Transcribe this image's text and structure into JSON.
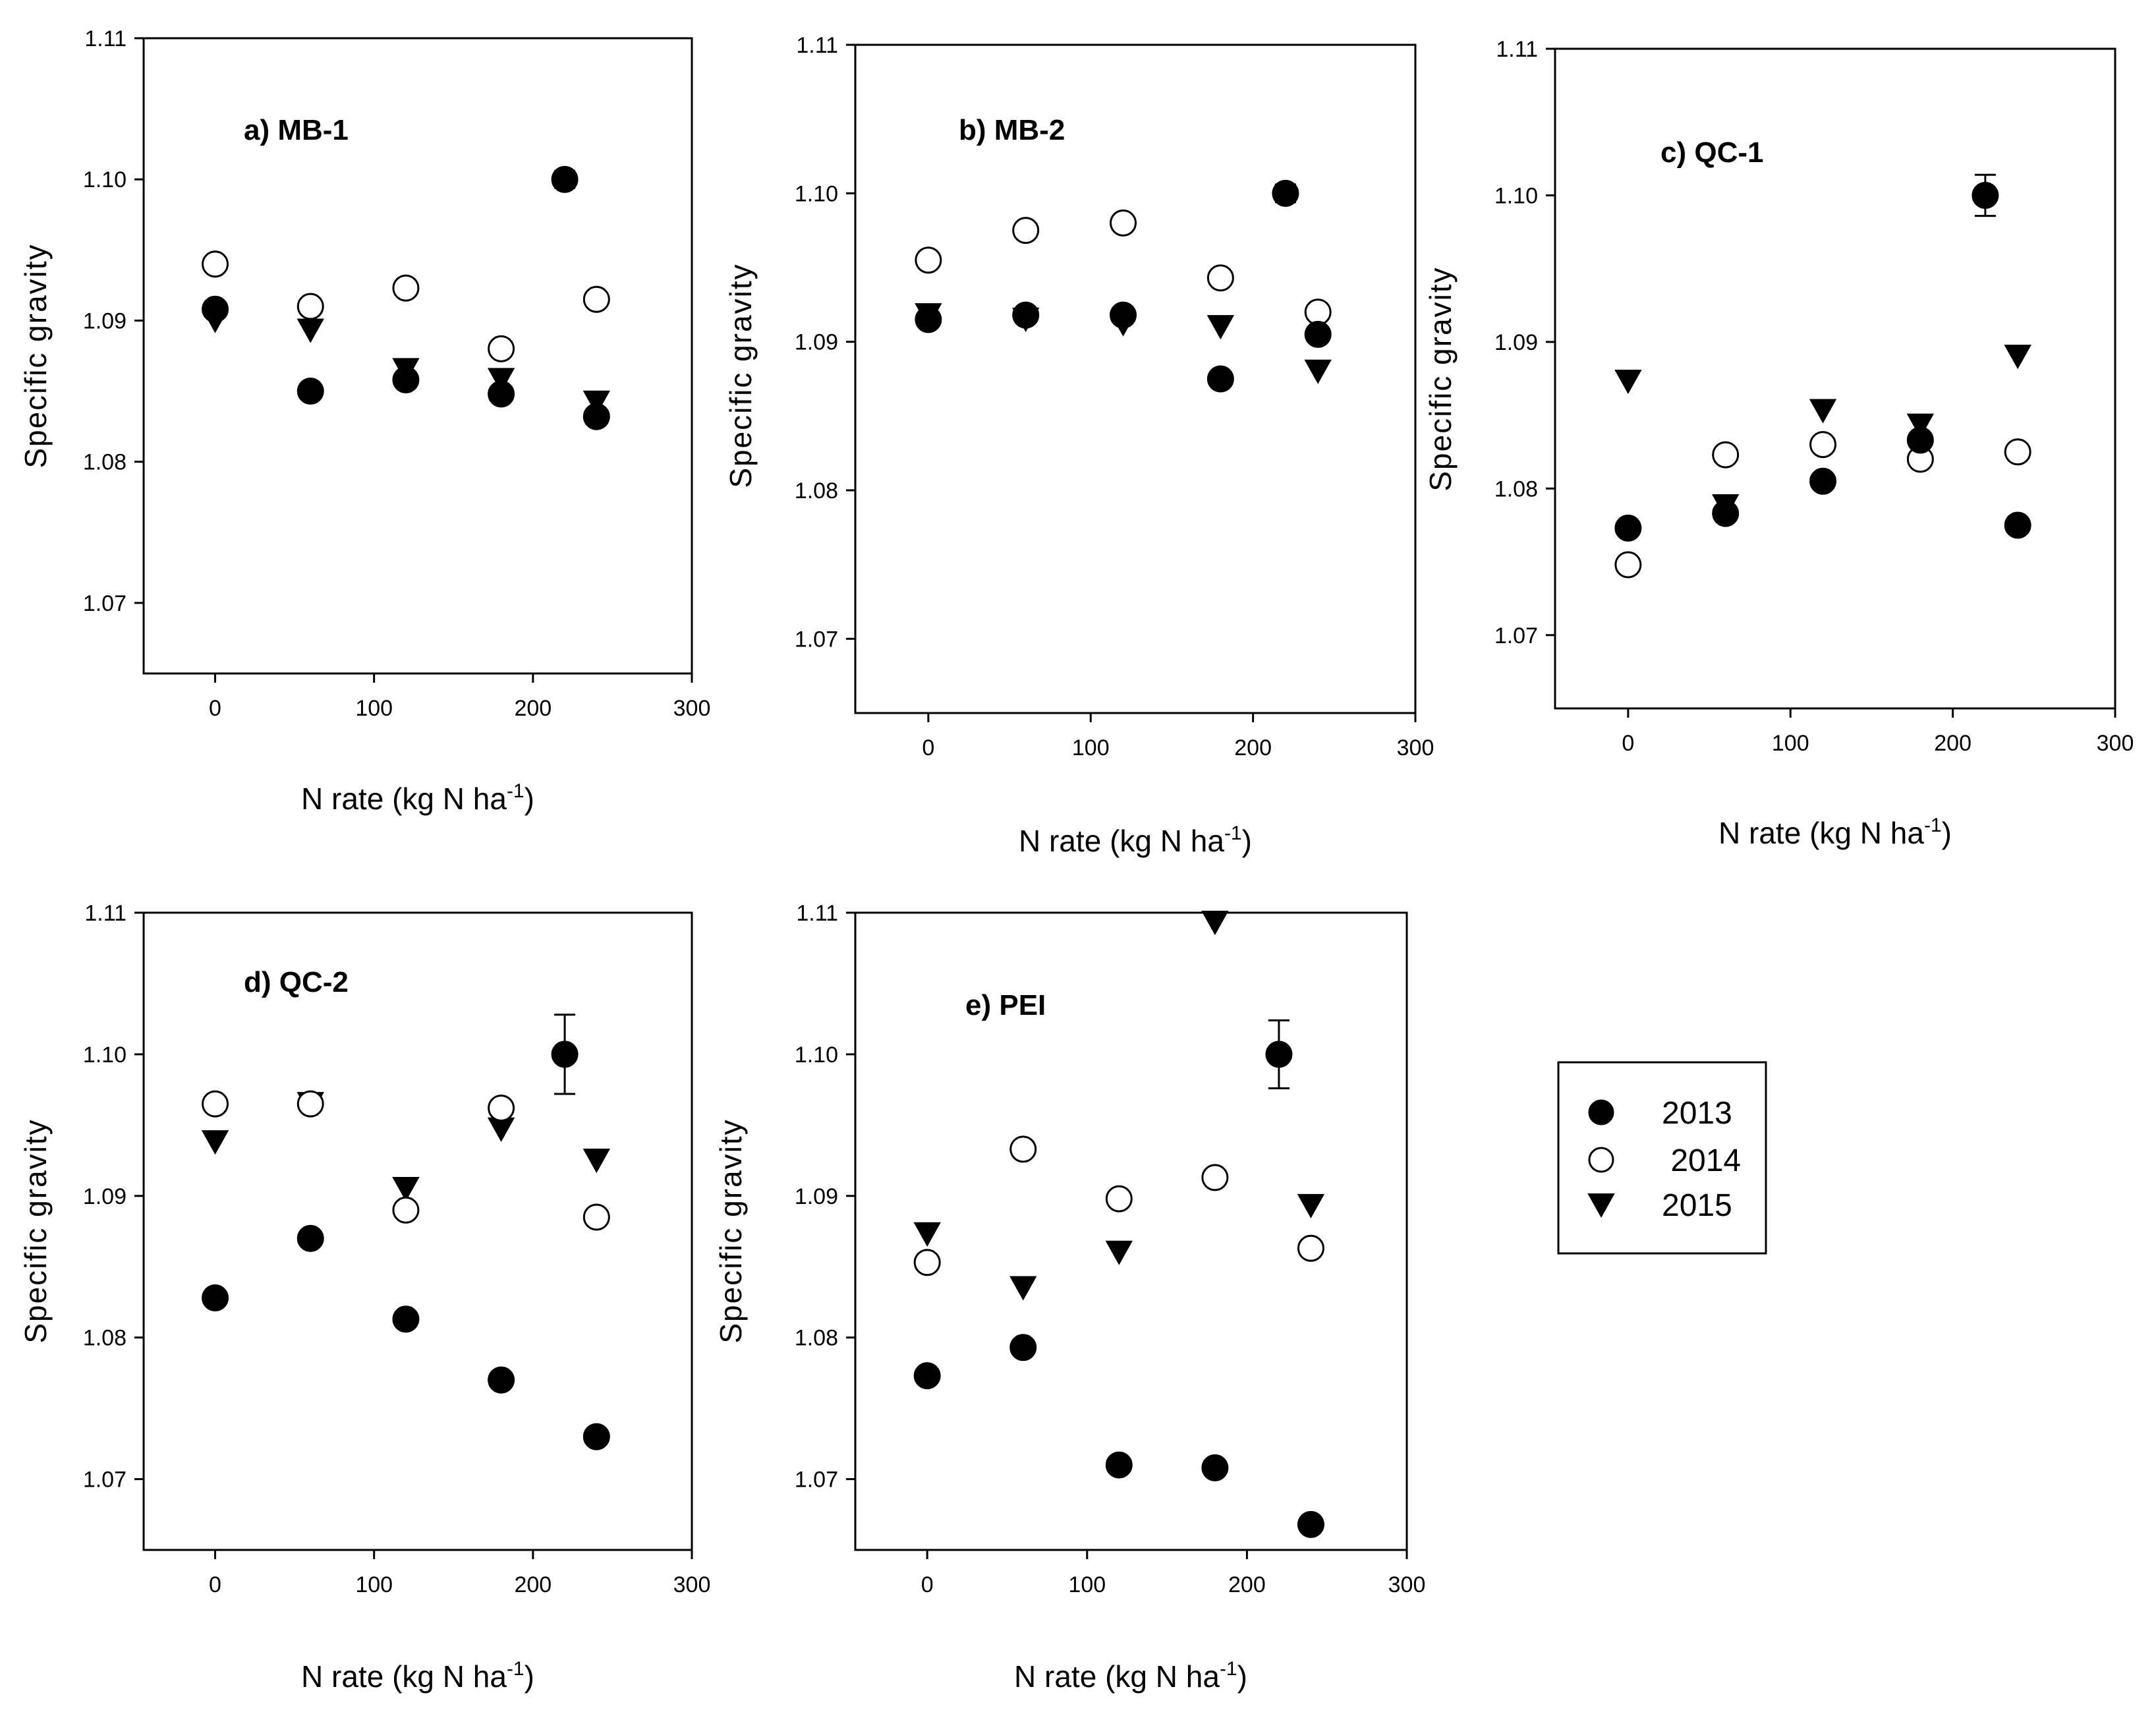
{
  "chart_data": [
    {
      "type": "scatter",
      "title": "a) MB-1",
      "xlabel": "N rate (kg N ha",
      "xlabel_sup": "-1",
      "xlabel_end": ")",
      "ylabel": "Specific gravity",
      "xlim": [
        -45,
        300
      ],
      "ylim": [
        1.065,
        1.11
      ],
      "xticks": [
        0,
        100,
        200,
        300
      ],
      "yticks": [
        1.07,
        1.08,
        1.09,
        1.1,
        1.11
      ],
      "ytick_labels": [
        "1.07",
        "1.08",
        "1.09",
        "1.10",
        "1.11"
      ],
      "series": [
        {
          "name": "2013",
          "marker": "filled-circle",
          "x": [
            0,
            60,
            120,
            180,
            240
          ],
          "y": [
            1.0908,
            1.085,
            1.0858,
            1.0848,
            1.0832
          ]
        },
        {
          "name": "2014",
          "marker": "open-circle",
          "x": [
            0,
            60,
            120,
            180,
            240
          ],
          "y": [
            1.094,
            1.091,
            1.0923,
            1.088,
            1.0915
          ]
        },
        {
          "name": "2015",
          "marker": "filled-triangle",
          "x": [
            0,
            60,
            120,
            180,
            240
          ],
          "y": [
            1.09,
            1.0893,
            1.0865,
            1.0858,
            1.0842
          ]
        }
      ],
      "error_point": {
        "x": 220,
        "y": 1.1,
        "err": 0.0006
      }
    },
    {
      "type": "scatter",
      "title": "b) MB-2",
      "xlabel": "N rate (kg N ha",
      "xlabel_sup": "-1",
      "xlabel_end": ")",
      "ylabel": "Specific gravity",
      "xlim": [
        -45,
        300
      ],
      "ylim": [
        1.065,
        1.11
      ],
      "xticks": [
        0,
        100,
        200,
        300
      ],
      "yticks": [
        1.07,
        1.08,
        1.09,
        1.1,
        1.11
      ],
      "ytick_labels": [
        "1.07",
        "1.08",
        "1.09",
        "1.10",
        "1.11"
      ],
      "series": [
        {
          "name": "2013",
          "marker": "filled-circle",
          "x": [
            0,
            60,
            120,
            180,
            240
          ],
          "y": [
            1.0915,
            1.0918,
            1.0918,
            1.0875,
            1.0905
          ]
        },
        {
          "name": "2014",
          "marker": "open-circle",
          "x": [
            0,
            60,
            120,
            180,
            240
          ],
          "y": [
            1.0955,
            1.0975,
            1.098,
            1.0943,
            1.092
          ]
        },
        {
          "name": "2015",
          "marker": "filled-triangle",
          "x": [
            0,
            60,
            120,
            180,
            240
          ],
          "y": [
            1.0918,
            1.0915,
            1.0912,
            1.091,
            1.088
          ]
        }
      ],
      "error_point": {
        "x": 220,
        "y": 1.1,
        "err": 0.0006
      }
    },
    {
      "type": "scatter",
      "title": "c) QC-1",
      "xlabel": "N rate (kg N ha",
      "xlabel_sup": "-1",
      "xlabel_end": ")",
      "ylabel": "Specific gravity",
      "xlim": [
        -45,
        300
      ],
      "ylim": [
        1.065,
        1.11
      ],
      "xticks": [
        0,
        100,
        200,
        300
      ],
      "yticks": [
        1.07,
        1.08,
        1.09,
        1.1,
        1.11
      ],
      "ytick_labels": [
        "1.07",
        "1.08",
        "1.09",
        "1.10",
        "1.11"
      ],
      "series": [
        {
          "name": "2013",
          "marker": "filled-circle",
          "x": [
            0,
            60,
            120,
            180,
            240
          ],
          "y": [
            1.0773,
            1.0783,
            1.0805,
            1.0833,
            1.0775
          ]
        },
        {
          "name": "2014",
          "marker": "open-circle",
          "x": [
            0,
            60,
            120,
            180,
            240
          ],
          "y": [
            1.0748,
            1.0823,
            1.083,
            1.082,
            1.0825
          ]
        },
        {
          "name": "2015",
          "marker": "filled-triangle",
          "x": [
            0,
            60,
            120,
            180,
            240
          ],
          "y": [
            1.0873,
            1.0788,
            1.0853,
            1.0843,
            1.089
          ]
        }
      ],
      "error_point": {
        "x": 220,
        "y": 1.1,
        "err": 0.0014
      }
    },
    {
      "type": "scatter",
      "title": "d) QC-2",
      "xlabel": "N rate (kg N ha",
      "xlabel_sup": "-1",
      "xlabel_end": ")",
      "ylabel": "Specific gravity",
      "xlim": [
        -45,
        300
      ],
      "ylim": [
        1.065,
        1.11
      ],
      "xticks": [
        0,
        100,
        200,
        300
      ],
      "yticks": [
        1.07,
        1.08,
        1.09,
        1.1,
        1.11
      ],
      "ytick_labels": [
        "1.07",
        "1.08",
        "1.09",
        "1.10",
        "1.11"
      ],
      "series": [
        {
          "name": "2013",
          "marker": "filled-circle",
          "x": [
            0,
            60,
            120,
            180,
            240
          ],
          "y": [
            1.0828,
            1.087,
            1.0813,
            1.077,
            1.073
          ]
        },
        {
          "name": "2014",
          "marker": "open-circle",
          "x": [
            0,
            60,
            120,
            180,
            240
          ],
          "y": [
            1.0965,
            1.0965,
            1.089,
            1.0962,
            1.0885
          ]
        },
        {
          "name": "2015",
          "marker": "filled-triangle",
          "x": [
            0,
            60,
            120,
            180,
            240
          ],
          "y": [
            1.0938,
            1.0965,
            1.0905,
            1.0947,
            1.0925
          ]
        }
      ],
      "error_point": {
        "x": 220,
        "y": 1.1,
        "err": 0.0028
      }
    },
    {
      "type": "scatter",
      "title": "e) PEI",
      "xlabel": "N rate (kg N ha",
      "xlabel_sup": "-1",
      "xlabel_end": ")",
      "ylabel": "Specific gravity",
      "xlim": [
        -45,
        300
      ],
      "ylim": [
        1.065,
        1.11
      ],
      "xticks": [
        0,
        100,
        200,
        300
      ],
      "yticks": [
        1.07,
        1.08,
        1.09,
        1.1,
        1.11
      ],
      "ytick_labels": [
        "1.07",
        "1.08",
        "1.09",
        "1.10",
        "1.11"
      ],
      "series": [
        {
          "name": "2013",
          "marker": "filled-circle",
          "x": [
            0,
            60,
            120,
            180,
            240
          ],
          "y": [
            1.0773,
            1.0793,
            1.071,
            1.0708,
            1.0668
          ]
        },
        {
          "name": "2014",
          "marker": "open-circle",
          "x": [
            0,
            60,
            120,
            180,
            240
          ],
          "y": [
            1.0853,
            1.0933,
            1.0898,
            1.0913,
            1.0863
          ]
        },
        {
          "name": "2015",
          "marker": "filled-triangle",
          "x": [
            0,
            60,
            120,
            180,
            240
          ],
          "y": [
            1.0873,
            1.0835,
            1.086,
            1.1093,
            1.0893
          ]
        }
      ],
      "error_point": {
        "x": 220,
        "y": 1.1,
        "err": 0.0024
      }
    }
  ],
  "legend": {
    "position": "bottom-right",
    "entries": [
      {
        "label": "2013",
        "marker": "filled-circle"
      },
      {
        "label": " 2014",
        "marker": "open-circle"
      },
      {
        "label": "2015",
        "marker": "filled-triangle"
      }
    ]
  }
}
